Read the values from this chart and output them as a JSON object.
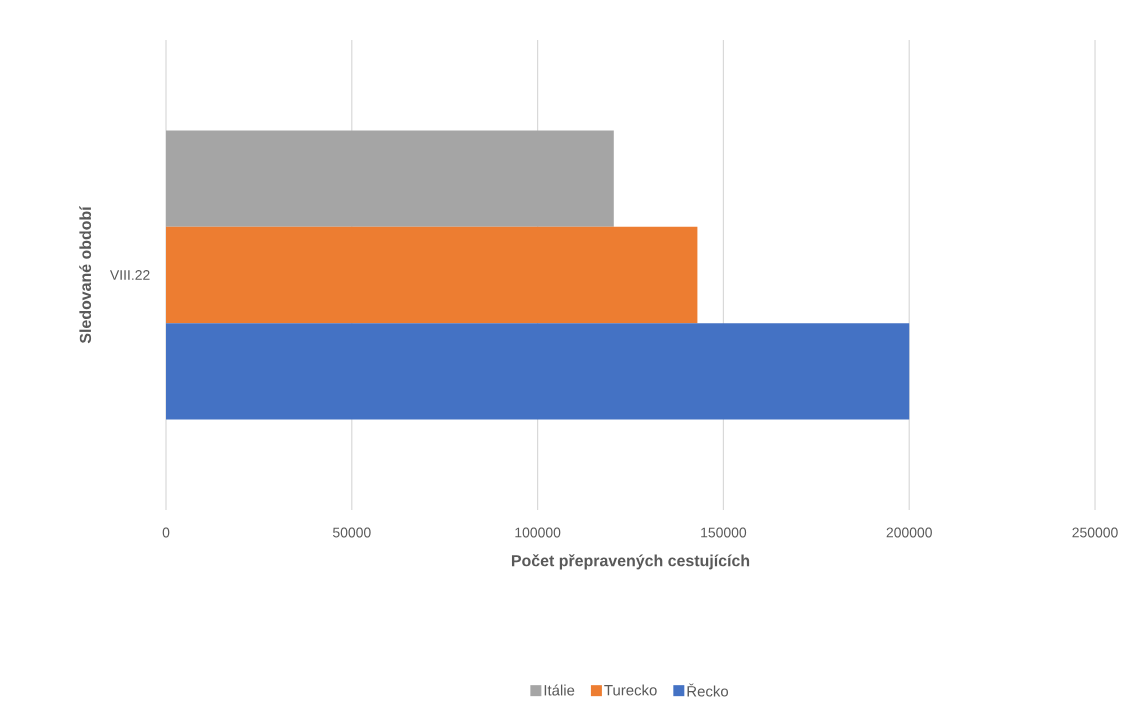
{
  "chart_data": {
    "type": "bar",
    "orientation": "horizontal",
    "xlabel": "Počet přepravených cestujících",
    "ylabel": "Sledované období",
    "categories": [
      "VIII.22"
    ],
    "series": [
      {
        "name": "Itálie",
        "color": "#a5a5a5",
        "values": [
          120500
        ]
      },
      {
        "name": "Turecko",
        "color": "#ed7d31",
        "values": [
          143000
        ]
      },
      {
        "name": "Řecko",
        "color": "#4472c4",
        "values": [
          200000
        ]
      }
    ],
    "xlim": [
      0,
      250000
    ],
    "xticks": [
      0,
      50000,
      100000,
      150000,
      200000,
      250000
    ],
    "grid": "x",
    "legend": "bottom"
  }
}
